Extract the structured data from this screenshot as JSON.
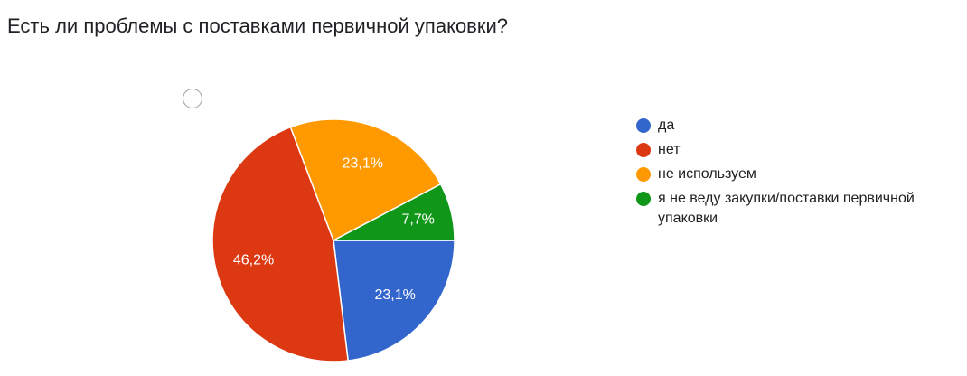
{
  "question_title": "Есть ли проблемы с поставками первичной упаковки?",
  "chart_data": {
    "type": "pie",
    "title": "Есть ли проблемы с поставками первичной упаковки?",
    "start_angle_deg": 90,
    "direction": "clockwise",
    "legend_position": "right",
    "slices": [
      {
        "label": "да",
        "value": 23.1,
        "display": "23,1%",
        "color": "#3366cc"
      },
      {
        "label": "нет",
        "value": 46.2,
        "display": "46,2%",
        "color": "#dc3912"
      },
      {
        "label": "не используем",
        "value": 23.1,
        "display": "23,1%",
        "color": "#ff9900"
      },
      {
        "label": "я не веду закупки/поставки первичной упаковки",
        "value": 7.7,
        "display": "7,7%",
        "color": "#109618"
      }
    ]
  }
}
